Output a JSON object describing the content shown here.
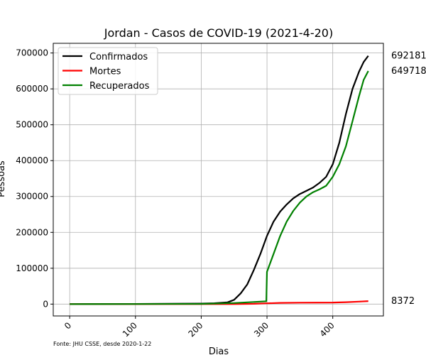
{
  "chart_data": {
    "type": "line",
    "title": "Jordan - Casos de COVID-19 (2021-4-20)",
    "xlabel": "Dias",
    "ylabel": "Pessoas",
    "xlim": [
      -25,
      477
    ],
    "ylim": [
      -33000,
      727000
    ],
    "xticks": [
      0,
      100,
      200,
      300,
      400
    ],
    "yticks": [
      0,
      100000,
      200000,
      300000,
      400000,
      500000,
      600000,
      700000
    ],
    "grid": true,
    "legend_position": "top-left",
    "source_note": "Fonte: JHU CSSE, desde 2020-1-22",
    "series": [
      {
        "name": "Confirmados",
        "color": "#000000",
        "end_label": "692181",
        "x": [
          0,
          100,
          200,
          220,
          240,
          250,
          260,
          270,
          280,
          290,
          300,
          310,
          320,
          330,
          340,
          350,
          360,
          370,
          380,
          390,
          400,
          410,
          420,
          430,
          440,
          447,
          454
        ],
        "y": [
          0,
          500,
          1500,
          2500,
          5000,
          12000,
          30000,
          55000,
          95000,
          140000,
          190000,
          230000,
          258000,
          278000,
          295000,
          307000,
          316000,
          325000,
          338000,
          355000,
          390000,
          450000,
          530000,
          600000,
          648000,
          675000,
          692181
        ]
      },
      {
        "name": "Mortes",
        "color": "#ff0000",
        "end_label": "8372",
        "x": [
          0,
          200,
          250,
          280,
          300,
          320,
          350,
          400,
          420,
          440,
          454
        ],
        "y": [
          0,
          20,
          150,
          800,
          2300,
          3500,
          4000,
          4500,
          5300,
          7000,
          8372
        ]
      },
      {
        "name": "Recuperados",
        "color": "#008000",
        "end_label": "649718",
        "x": [
          0,
          100,
          200,
          250,
          280,
          299,
          300,
          310,
          320,
          330,
          340,
          350,
          360,
          370,
          380,
          390,
          400,
          410,
          420,
          430,
          440,
          447,
          454
        ],
        "y": [
          0,
          200,
          600,
          3000,
          6000,
          8000,
          90000,
          140000,
          190000,
          230000,
          260000,
          283000,
          300000,
          312000,
          320000,
          330000,
          355000,
          390000,
          440000,
          510000,
          580000,
          625000,
          649718
        ]
      }
    ]
  }
}
